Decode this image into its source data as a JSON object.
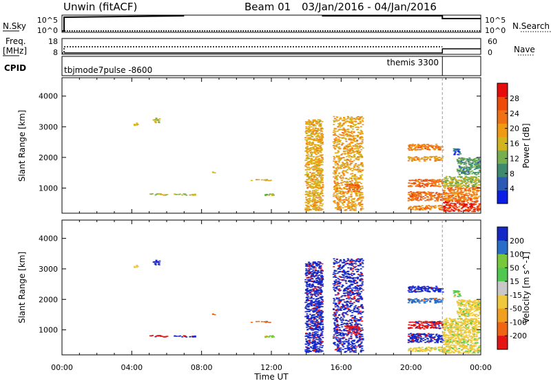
{
  "header": {
    "title": "Unwin (fitACF)",
    "beam": "Beam 01",
    "date_range": "03/Jan/2016 - 04/Jan/2016"
  },
  "noise_panel": {
    "left_label": "N.Sky",
    "right_label": "N.Search",
    "left_ticks": [
      "10^5",
      "10^0"
    ],
    "right_ticks": [
      "10^5",
      "10^0"
    ]
  },
  "freq_panel": {
    "left_label_line1": "Freq.",
    "left_label_line2": "[MHz]",
    "right_label": "Nave",
    "left_ticks": [
      "18",
      "8"
    ],
    "right_ticks": [
      "60",
      "0"
    ]
  },
  "cpid_panel": {
    "label": "CPID",
    "mode_left": "tbjmode7pulse -8600",
    "mode_right": "themis 3300"
  },
  "chart_data": [
    {
      "type": "heatmap",
      "name": "power",
      "ylabel": "Slant Range [km]",
      "ylim": [
        180,
        4600
      ],
      "yticks": [
        1000,
        2000,
        3000,
        4000
      ],
      "colorbar": {
        "label": "Power [dB]",
        "range": [
          0,
          32
        ],
        "ticks": [
          4,
          8,
          12,
          16,
          20,
          24,
          28
        ],
        "colors": [
          "#0a1ee6",
          "#2a5ab4",
          "#3d8a6e",
          "#76b04e",
          "#d2b41e",
          "#f09a14",
          "#f07014",
          "#f04a0a",
          "#e60c0c"
        ]
      }
    },
    {
      "type": "heatmap",
      "name": "velocity",
      "ylabel": "Slant Range [km]",
      "ylim": [
        180,
        4600
      ],
      "yticks": [
        1000,
        2000,
        3000,
        4000
      ],
      "colorbar": {
        "label": "Velocity [m s^-1]",
        "levels": [
          "200",
          "100",
          "50",
          "15",
          "-15",
          "-50",
          "-100",
          "-200"
        ],
        "colors": [
          "#1428c8",
          "#286ec8",
          "#78c83c",
          "#50c850",
          "#c8c8c8",
          "#f0c83c",
          "#f0a01e",
          "#f06414",
          "#e61414"
        ]
      }
    }
  ],
  "time_axis": {
    "label": "Time UT",
    "range_hours": [
      0,
      24
    ],
    "tick_labels": [
      "00:00",
      "04:00",
      "08:00",
      "12:00",
      "16:00",
      "20:00",
      "00:00"
    ],
    "mode_change_hour": 21.8
  },
  "patches": [
    {
      "t": [
        4.1,
        4.3
      ],
      "r": [
        3050,
        3150
      ],
      "p": 16,
      "v": -15
    },
    {
      "t": [
        5.2,
        5.6
      ],
      "r": [
        3150,
        3300
      ],
      "p": 14,
      "v": 200
    },
    {
      "t": [
        5.0,
        6.0
      ],
      "r": [
        780,
        840
      ],
      "p": 16,
      "v": -200
    },
    {
      "t": [
        6.4,
        7.6
      ],
      "r": [
        780,
        830
      ],
      "p": 15,
      "v": 200
    },
    {
      "t": [
        8.6,
        8.8
      ],
      "r": [
        1500,
        1540
      ],
      "p": 18,
      "v": -100
    },
    {
      "t": [
        10.8,
        12.0
      ],
      "r": [
        1260,
        1300
      ],
      "p": 18,
      "v": -100
    },
    {
      "t": [
        11.6,
        12.5
      ],
      "r": [
        770,
        830
      ],
      "p": 14,
      "v": 50
    },
    {
      "t": [
        13.9,
        14.9
      ],
      "r": [
        280,
        3250
      ],
      "p": 18,
      "v": 200
    },
    {
      "t": [
        15.5,
        17.2
      ],
      "r": [
        280,
        3350
      ],
      "p": 19,
      "v": 200
    },
    {
      "t": [
        16.2,
        17.0
      ],
      "r": [
        900,
        1150
      ],
      "p": 24,
      "v": -200
    },
    {
      "t": [
        19.8,
        21.8
      ],
      "r": [
        2250,
        2450
      ],
      "p": 22,
      "v": 200
    },
    {
      "t": [
        19.8,
        21.8
      ],
      "r": [
        1900,
        2050
      ],
      "p": 20,
      "v": 100
    },
    {
      "t": [
        19.8,
        21.8
      ],
      "r": [
        1050,
        1300
      ],
      "p": 24,
      "v": -200
    },
    {
      "t": [
        19.8,
        21.8
      ],
      "r": [
        600,
        900
      ],
      "p": 24,
      "v": 200
    },
    {
      "t": [
        19.8,
        21.8
      ],
      "r": [
        300,
        450
      ],
      "p": 22,
      "v": -15
    },
    {
      "t": [
        21.8,
        23.9
      ],
      "r": [
        250,
        600
      ],
      "p": 28,
      "v": -15
    },
    {
      "t": [
        21.8,
        23.9
      ],
      "r": [
        600,
        1050
      ],
      "p": 22,
      "v": -15
    },
    {
      "t": [
        21.8,
        23.9
      ],
      "r": [
        1050,
        1400
      ],
      "p": 14,
      "v": -15
    },
    {
      "t": [
        22.6,
        23.9
      ],
      "r": [
        1450,
        2000
      ],
      "p": 10,
      "v": -15
    },
    {
      "t": [
        22.4,
        22.8
      ],
      "r": [
        2100,
        2300
      ],
      "p": 6,
      "v": 15
    }
  ]
}
